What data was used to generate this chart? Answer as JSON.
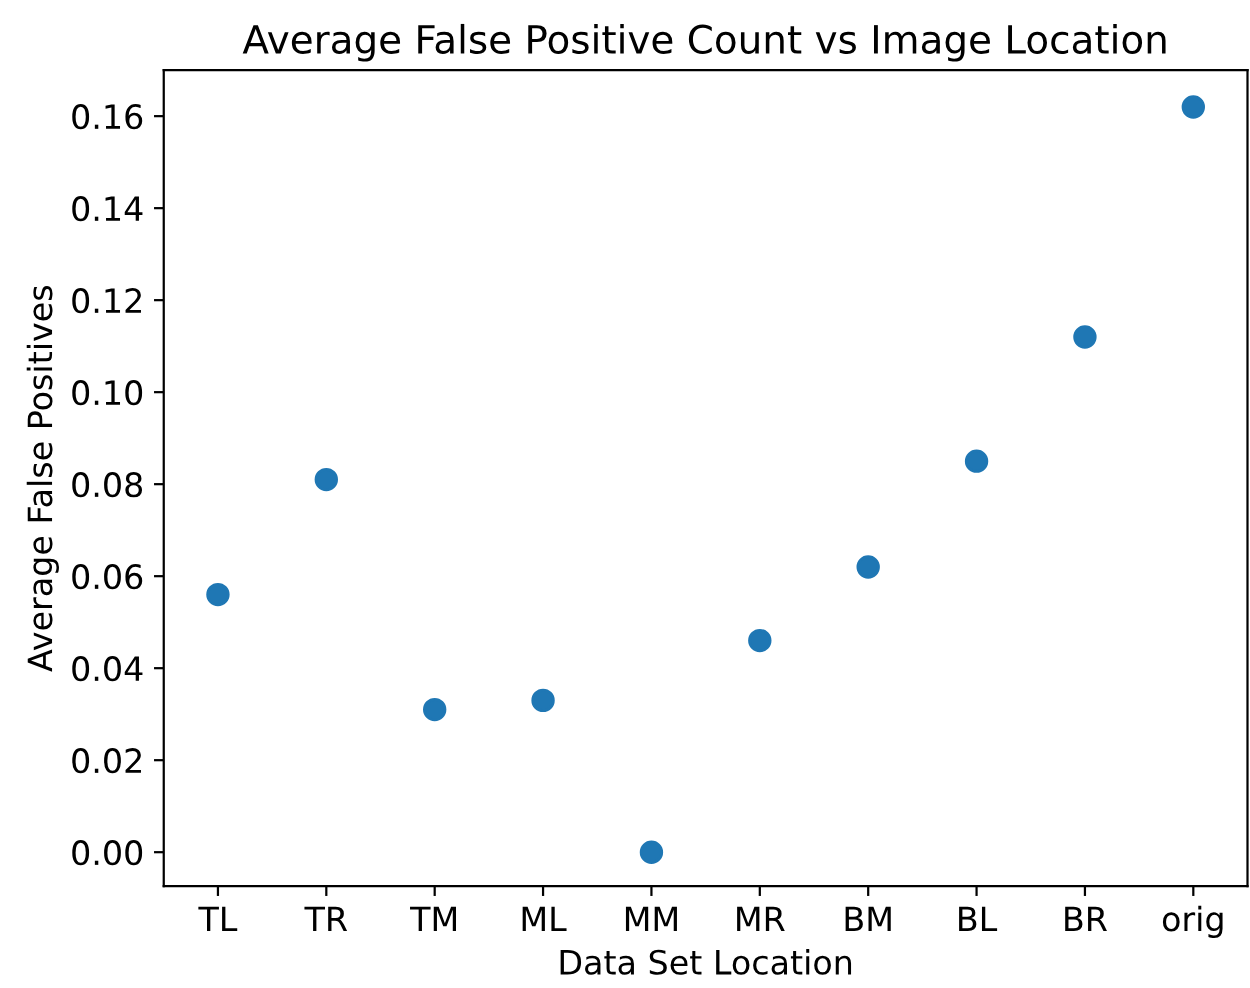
{
  "chart_data": {
    "type": "scatter",
    "title": "Average False Positive Count vs Image Location",
    "xlabel": "Data Set Location",
    "ylabel": "Average False Positives",
    "categories": [
      "TL",
      "TR",
      "TM",
      "ML",
      "MM",
      "MR",
      "BM",
      "BL",
      "BR",
      "orig"
    ],
    "series": [
      {
        "color": "#1f77b4",
        "values": [
          0.056,
          0.081,
          0.031,
          0.033,
          0.0,
          0.046,
          0.062,
          0.085,
          0.112,
          0.162
        ]
      }
    ],
    "ylim": [
      -0.0074,
      0.17
    ],
    "yticks": [
      {
        "value": 0,
        "label": "0.00"
      },
      0.02,
      0.04,
      0.06,
      0.08,
      {
        "value": 0.1,
        "label": "0.10"
      },
      0.12,
      0.14,
      0.16
    ],
    "marker": "circle",
    "grid": false,
    "legend": false
  }
}
